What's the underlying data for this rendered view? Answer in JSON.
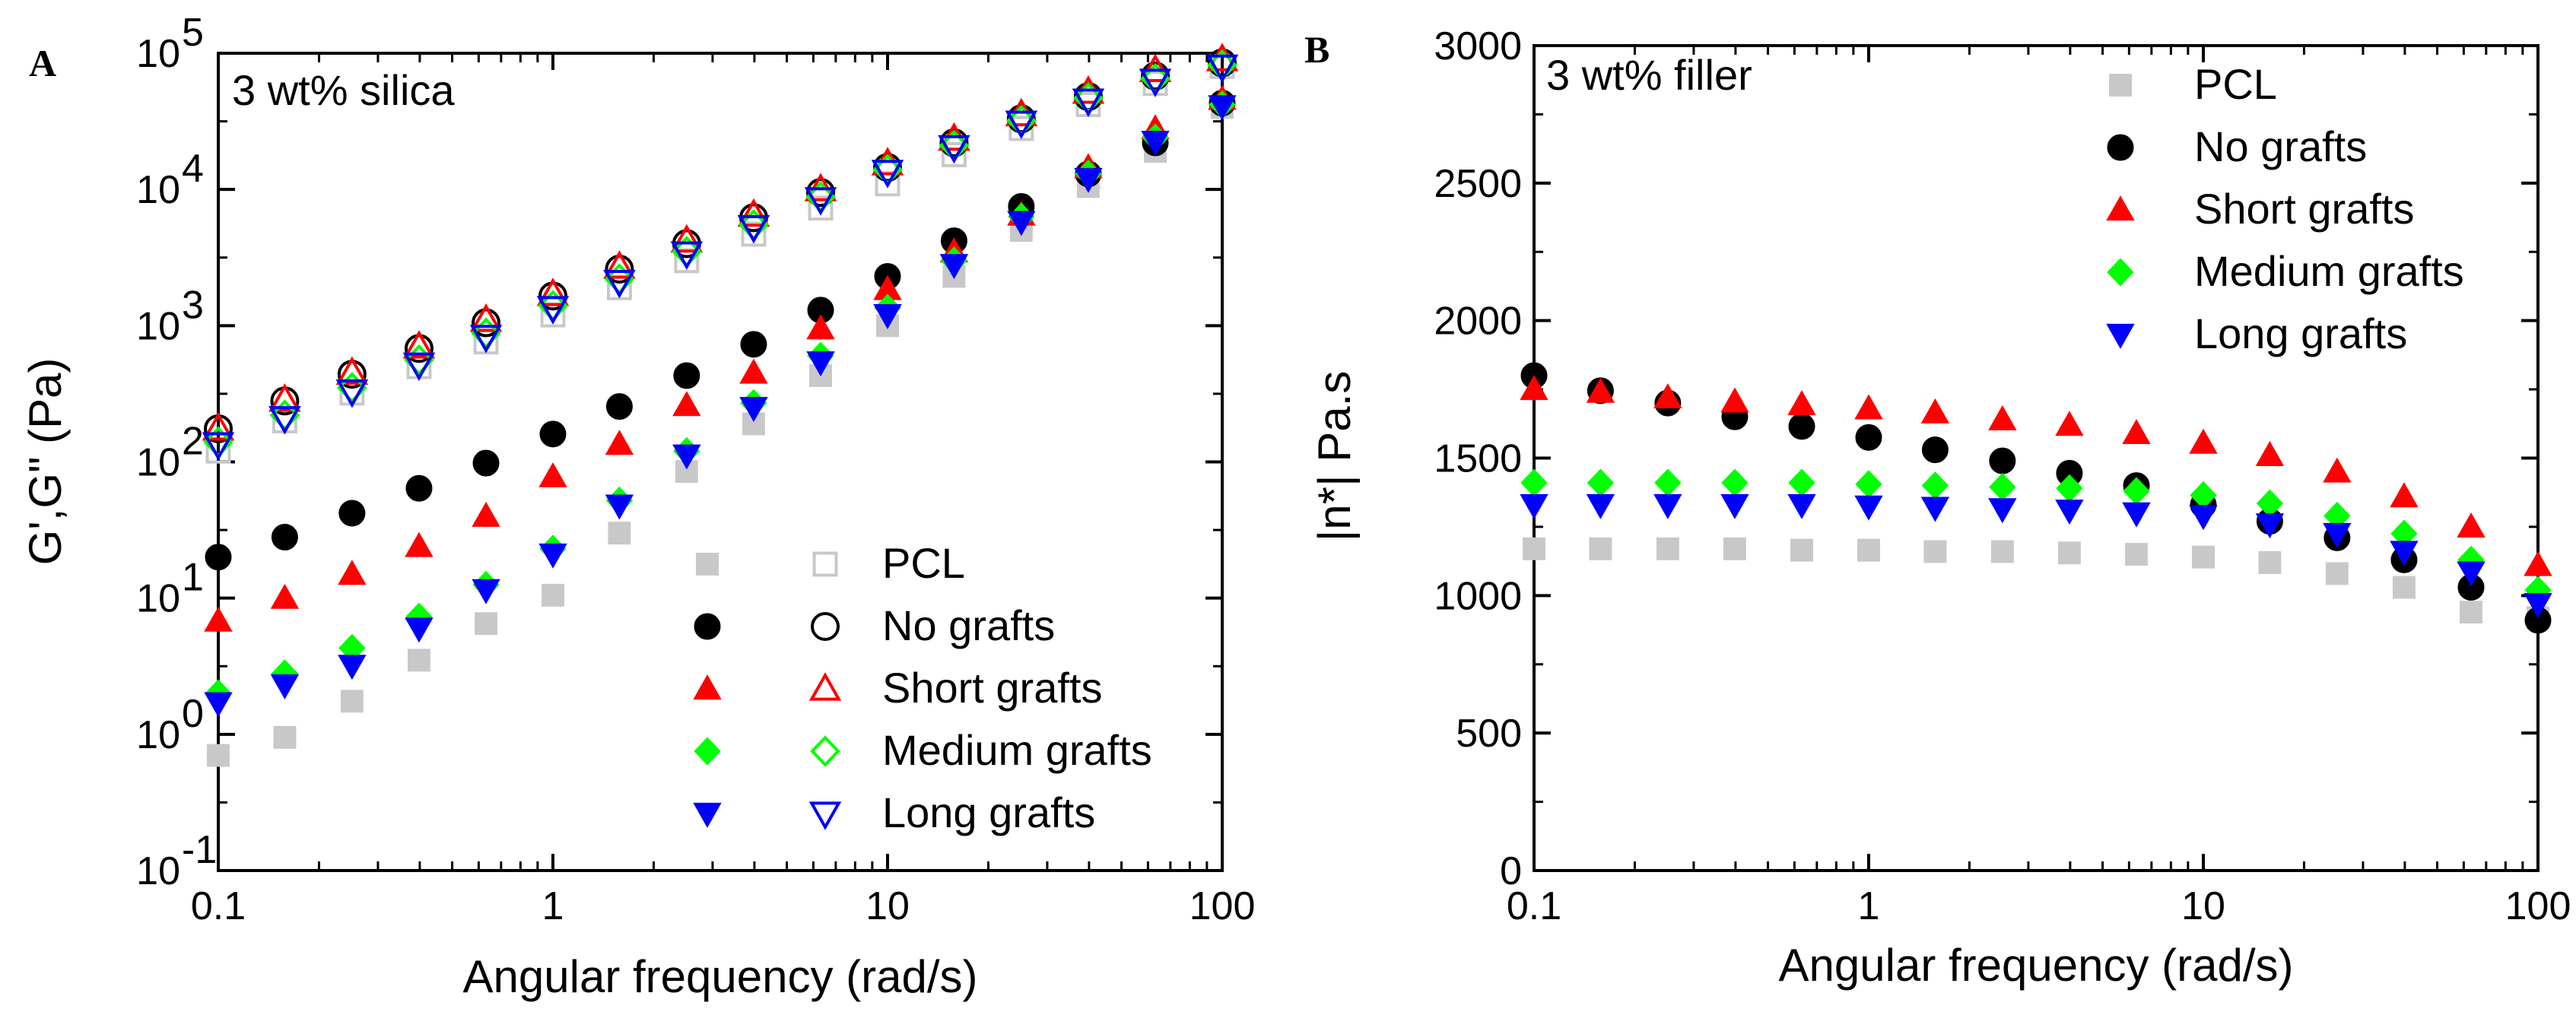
{
  "chart_data": [
    {
      "panel_label": "A",
      "type": "scatter",
      "annotation": "3 wt% silica",
      "xlabel": "Angular frequency (rad/s)",
      "ylabel": "G',G\" (Pa)",
      "xscale": "log",
      "yscale": "log",
      "xlim": [
        0.1,
        100
      ],
      "ylim": [
        0.1,
        100000
      ],
      "x_ticks": [
        {
          "value": 0.1,
          "label": "0.1"
        },
        {
          "value": 1,
          "label": "1"
        },
        {
          "value": 10,
          "label": "10"
        },
        {
          "value": 100,
          "label": "100"
        }
      ],
      "y_ticks": [
        {
          "value": 0.1,
          "base": "10",
          "exp": "-1"
        },
        {
          "value": 1,
          "base": "10",
          "exp": "0"
        },
        {
          "value": 10,
          "base": "10",
          "exp": "1"
        },
        {
          "value": 100,
          "base": "10",
          "exp": "2"
        },
        {
          "value": 1000,
          "base": "10",
          "exp": "3"
        },
        {
          "value": 10000,
          "base": "10",
          "exp": "4"
        },
        {
          "value": 100000,
          "base": "10",
          "exp": "5"
        }
      ],
      "legend_position": "bottom-right",
      "x": [
        0.1,
        0.158,
        0.251,
        0.398,
        0.631,
        1,
        1.58,
        2.51,
        3.98,
        6.31,
        10,
        15.8,
        25.1,
        39.8,
        63.1,
        100
      ],
      "series": [
        {
          "name": "PCL",
          "marker": "square",
          "color": "#c8c8c8",
          "filled_values": [
            0.7,
            0.95,
            1.75,
            3.5,
            6.5,
            10.5,
            30,
            85,
            190,
            430,
            1000,
            2300,
            5000,
            10500,
            19000,
            40000
          ],
          "open_values": [
            120,
            200,
            320,
            500,
            760,
            1200,
            1900,
            3000,
            4700,
            7300,
            11000,
            18000,
            28000,
            42000,
            60000,
            80000
          ]
        },
        {
          "name": "No grafts",
          "marker": "circle",
          "color": "#000000",
          "filled_values": [
            20,
            28,
            42,
            64,
            98,
            160,
            255,
            430,
            730,
            1300,
            2300,
            4200,
            7500,
            13000,
            22000,
            43000
          ],
          "open_values": [
            175,
            280,
            440,
            680,
            1050,
            1650,
            2600,
            4000,
            6200,
            9500,
            14500,
            22000,
            33000,
            48000,
            68000,
            85000
          ]
        },
        {
          "name": "Short grafts",
          "marker": "triangle-up",
          "color": "#ff0000",
          "filled_values": [
            6.8,
            10,
            15,
            24,
            40,
            78,
            135,
            260,
            450,
            950,
            1850,
            3500,
            6500,
            14500,
            28000,
            46000
          ],
          "open_values": [
            175,
            285,
            450,
            700,
            1100,
            1700,
            2700,
            4200,
            6500,
            10000,
            15500,
            23500,
            35500,
            52000,
            75000,
            90000
          ]
        },
        {
          "name": "Medium grafts",
          "marker": "diamond",
          "color": "#00ff00",
          "filled_values": [
            2.0,
            2.8,
            4.3,
            7.3,
            12.5,
            23,
            52,
            120,
            270,
            600,
            1350,
            3000,
            6300,
            13000,
            24000,
            42000
          ],
          "open_values": [
            140,
            220,
            350,
            560,
            880,
            1400,
            2200,
            3500,
            5500,
            8800,
            14000,
            21000,
            32000,
            47000,
            65000,
            82000
          ]
        },
        {
          "name": "Long grafts",
          "marker": "triangle-down",
          "color": "#0000ff",
          "filled_values": [
            1.7,
            2.3,
            3.2,
            6.0,
            11.5,
            21,
            48,
            112,
            250,
            540,
            1200,
            2800,
            5800,
            12000,
            22500,
            41000
          ],
          "open_values": [
            135,
            210,
            330,
            520,
            830,
            1350,
            2100,
            3400,
            5300,
            8500,
            13500,
            20500,
            31000,
            45000,
            63000,
            80000
          ]
        }
      ]
    },
    {
      "panel_label": "B",
      "type": "scatter",
      "annotation": "3 wt% filler",
      "xlabel": "Angular frequency (rad/s)",
      "ylabel": "|n*| Pa.s",
      "xscale": "log",
      "yscale": "linear",
      "xlim": [
        0.1,
        100
      ],
      "ylim": [
        0,
        3000
      ],
      "x_ticks": [
        {
          "value": 0.1,
          "label": "0.1"
        },
        {
          "value": 1,
          "label": "1"
        },
        {
          "value": 10,
          "label": "10"
        },
        {
          "value": 100,
          "label": "100"
        }
      ],
      "y_ticks": [
        {
          "value": 0,
          "label": "0"
        },
        {
          "value": 500,
          "label": "500"
        },
        {
          "value": 1000,
          "label": "1000"
        },
        {
          "value": 1500,
          "label": "1500"
        },
        {
          "value": 2000,
          "label": "2000"
        },
        {
          "value": 2500,
          "label": "2500"
        },
        {
          "value": 3000,
          "label": "3000"
        }
      ],
      "legend_position": "top-right",
      "x": [
        0.1,
        0.158,
        0.251,
        0.398,
        0.631,
        1,
        1.58,
        2.51,
        3.98,
        6.31,
        10,
        15.8,
        25.1,
        39.8,
        63.1,
        100
      ],
      "series": [
        {
          "name": "PCL",
          "marker": "square",
          "color": "#c8c8c8",
          "values": [
            1170,
            1170,
            1170,
            1170,
            1165,
            1165,
            1160,
            1160,
            1155,
            1150,
            1140,
            1120,
            1080,
            1030,
            940,
            920
          ]
        },
        {
          "name": "No grafts",
          "marker": "circle",
          "color": "#000000",
          "values": [
            1800,
            1745,
            1700,
            1650,
            1615,
            1575,
            1530,
            1490,
            1445,
            1400,
            1330,
            1270,
            1210,
            1130,
            1030,
            910
          ]
        },
        {
          "name": "Short grafts",
          "marker": "triangle-up",
          "color": "#ff0000",
          "values": [
            1750,
            1740,
            1720,
            1705,
            1695,
            1680,
            1665,
            1640,
            1620,
            1590,
            1555,
            1510,
            1450,
            1360,
            1250,
            1110
          ]
        },
        {
          "name": "Medium grafts",
          "marker": "diamond",
          "color": "#00ff00",
          "values": [
            1410,
            1410,
            1410,
            1410,
            1410,
            1405,
            1400,
            1395,
            1390,
            1380,
            1365,
            1335,
            1290,
            1225,
            1130,
            1020
          ]
        },
        {
          "name": "Long grafts",
          "marker": "triangle-down",
          "color": "#0000ff",
          "values": [
            1330,
            1330,
            1330,
            1330,
            1330,
            1325,
            1320,
            1315,
            1310,
            1300,
            1290,
            1260,
            1225,
            1160,
            1085,
            970
          ]
        }
      ]
    }
  ]
}
